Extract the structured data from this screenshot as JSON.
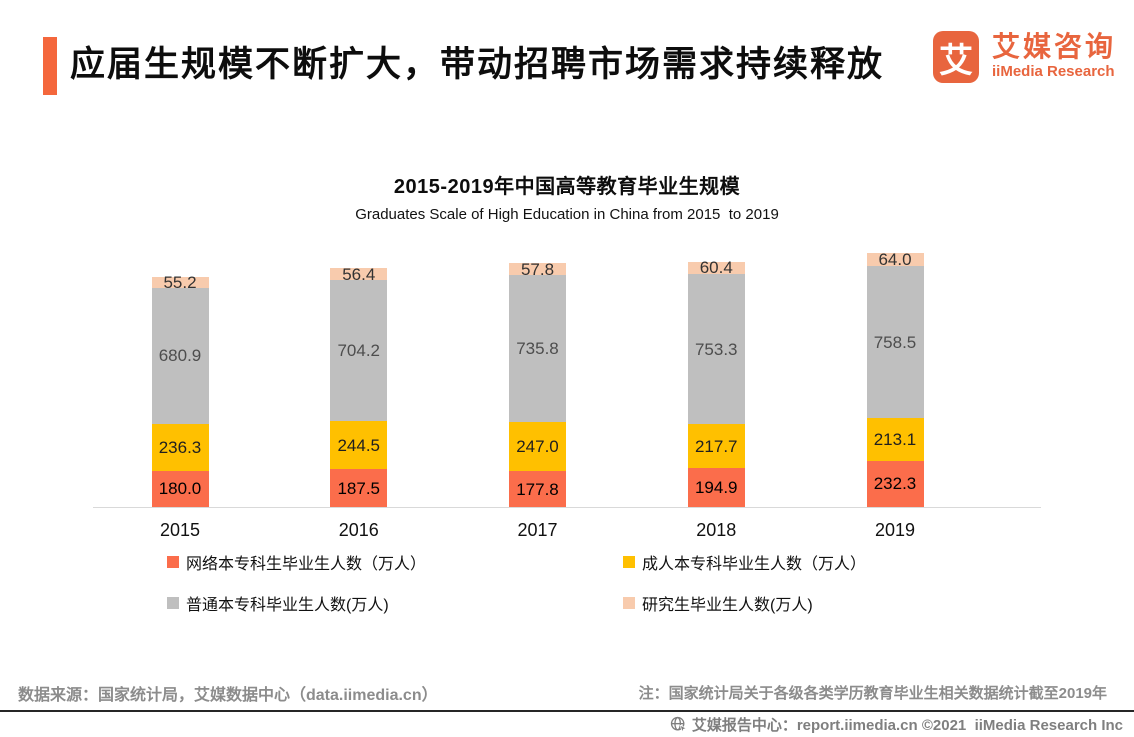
{
  "header": {
    "title": "应届生规模不断扩大，带动招聘市场需求持续释放",
    "logo": {
      "mark": "艾",
      "name_cn": "艾媒咨询",
      "name_en": "iiMedia Research"
    }
  },
  "chart": {
    "title": "2015-2019年中国高等教育毕业生规模",
    "subtitle": "Graduates Scale of High Education in China from 2015  to 2019"
  },
  "chart_data": {
    "type": "bar",
    "stacked": true,
    "grid": false,
    "legend_position": "bottom",
    "unit": "万人",
    "categories": [
      "2015",
      "2016",
      "2017",
      "2018",
      "2019"
    ],
    "series": [
      {
        "name": "网络本专科生毕业生人数（万人）",
        "color": "#FB6D4B",
        "label_color": "#000000",
        "values": [
          180.0,
          187.5,
          177.8,
          194.9,
          232.3
        ]
      },
      {
        "name": "成人本专科毕业生人数（万人）",
        "color": "#FFC000",
        "label_color": "#1f1f1f",
        "values": [
          236.3,
          244.5,
          247.0,
          217.7,
          213.1
        ]
      },
      {
        "name": "普通本专科毕业生人数(万人)",
        "color": "#BFBFBF",
        "label_color": "#4d4d4d",
        "values": [
          680.9,
          704.2,
          735.8,
          753.3,
          758.5
        ]
      },
      {
        "name": "研究生毕业生人数(万人)",
        "color": "#F8CBAD",
        "label_color": "#333333",
        "values": [
          55.2,
          56.4,
          57.8,
          60.4,
          64.0
        ]
      }
    ]
  },
  "footer": {
    "source": "数据来源：国家统计局，艾媒数据中心（data.iimedia.cn）",
    "note": "注：国家统计局关于各级各类学历教育毕业生相关数据统计截至2019年"
  },
  "bottom_bar": {
    "text": "艾媒报告中心：report.iimedia.cn ©2021  iiMedia Research Inc"
  },
  "colors": {
    "accent_orange": "#F4673C",
    "logo_orange": "#E8653E",
    "axis_line": "#D9D9D9",
    "footer_gray": "#8C8C8C",
    "bottom_text_gray": "#7F7F7F",
    "bottom_line": "#262626"
  }
}
